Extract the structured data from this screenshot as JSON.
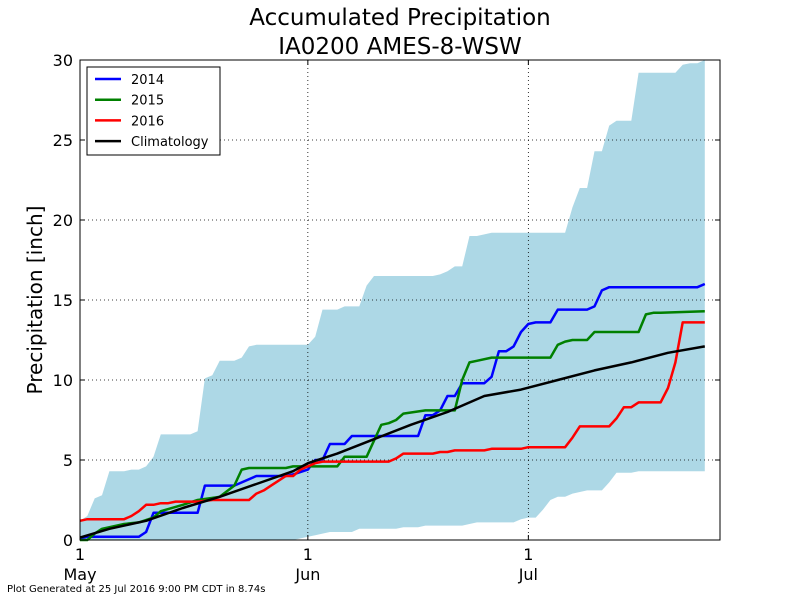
{
  "chart_data": {
    "type": "line",
    "title": "Accumulated Precipitation",
    "subtitle": "IA0200 AMES-8-WSW",
    "xlabel": "",
    "ylabel": "Precipitation [inch]",
    "ylim": [
      0,
      30
    ],
    "yticks": [
      0,
      5,
      10,
      15,
      20,
      25,
      30
    ],
    "xlim": [
      "2016-05-01",
      "2016-07-25"
    ],
    "xticks": [
      {
        "date": "2016-05-01",
        "label1": "1",
        "label2": "May"
      },
      {
        "date": "2016-06-01",
        "label1": "1",
        "label2": "Jun"
      },
      {
        "date": "2016-07-01",
        "label1": "1",
        "label2": "Jul"
      }
    ],
    "grid": true,
    "legend_position": "top-left",
    "range_band": {
      "color": "#add8e6",
      "x": [
        "2016-05-01",
        "2016-05-02",
        "2016-05-03",
        "2016-05-04",
        "2016-05-05",
        "2016-05-06",
        "2016-05-07",
        "2016-05-08",
        "2016-05-09",
        "2016-05-10",
        "2016-05-11",
        "2016-05-12",
        "2016-05-13",
        "2016-05-14",
        "2016-05-15",
        "2016-05-16",
        "2016-05-17",
        "2016-05-18",
        "2016-05-19",
        "2016-05-20",
        "2016-05-21",
        "2016-05-22",
        "2016-05-23",
        "2016-05-24",
        "2016-05-25",
        "2016-05-26",
        "2016-05-27",
        "2016-05-28",
        "2016-05-29",
        "2016-05-30",
        "2016-05-31",
        "2016-06-01",
        "2016-06-02",
        "2016-06-03",
        "2016-06-04",
        "2016-06-05",
        "2016-06-06",
        "2016-06-07",
        "2016-06-08",
        "2016-06-09",
        "2016-06-10",
        "2016-06-11",
        "2016-06-12",
        "2016-06-13",
        "2016-06-14",
        "2016-06-15",
        "2016-06-16",
        "2016-06-17",
        "2016-06-18",
        "2016-06-19",
        "2016-06-20",
        "2016-06-21",
        "2016-06-22",
        "2016-06-23",
        "2016-06-24",
        "2016-06-25",
        "2016-06-26",
        "2016-06-27",
        "2016-06-28",
        "2016-06-29",
        "2016-06-30",
        "2016-07-01",
        "2016-07-02",
        "2016-07-03",
        "2016-07-04",
        "2016-07-05",
        "2016-07-06",
        "2016-07-07",
        "2016-07-08",
        "2016-07-09",
        "2016-07-10",
        "2016-07-11",
        "2016-07-12",
        "2016-07-13",
        "2016-07-14",
        "2016-07-15",
        "2016-07-16",
        "2016-07-17",
        "2016-07-18",
        "2016-07-19",
        "2016-07-20",
        "2016-07-21",
        "2016-07-22",
        "2016-07-23",
        "2016-07-24",
        "2016-07-25"
      ],
      "upper": [
        1.2,
        1.5,
        2.6,
        2.8,
        4.3,
        4.3,
        4.3,
        4.4,
        4.4,
        4.6,
        5.2,
        6.6,
        6.6,
        6.6,
        6.6,
        6.6,
        6.8,
        10.1,
        10.3,
        11.2,
        11.2,
        11.2,
        11.4,
        12.1,
        12.2,
        12.2,
        12.2,
        12.2,
        12.2,
        12.2,
        12.2,
        12.2,
        12.7,
        14.4,
        14.4,
        14.4,
        14.6,
        14.6,
        14.6,
        15.9,
        16.5,
        16.5,
        16.5,
        16.5,
        16.5,
        16.5,
        16.5,
        16.5,
        16.5,
        16.6,
        16.8,
        17.1,
        17.1,
        19.0,
        19.0,
        19.1,
        19.2,
        19.2,
        19.2,
        19.2,
        19.2,
        19.2,
        19.2,
        19.2,
        19.2,
        19.2,
        19.2,
        20.8,
        22.0,
        22.0,
        24.3,
        24.3,
        25.9,
        26.2,
        26.2,
        26.2,
        29.2,
        29.2,
        29.2,
        29.2,
        29.2,
        29.2,
        29.7,
        29.8,
        29.8,
        30.0
      ],
      "lower": [
        0,
        0,
        0,
        0,
        0,
        0,
        0,
        0,
        0,
        0,
        0,
        0,
        0,
        0,
        0,
        0,
        0,
        0,
        0,
        0,
        0,
        0,
        0,
        0,
        0,
        0,
        0,
        0,
        0,
        0,
        0.1,
        0.2,
        0.3,
        0.4,
        0.5,
        0.5,
        0.5,
        0.5,
        0.7,
        0.7,
        0.7,
        0.7,
        0.7,
        0.7,
        0.8,
        0.8,
        0.8,
        0.9,
        0.9,
        0.9,
        0.9,
        0.9,
        0.9,
        1.0,
        1.1,
        1.1,
        1.1,
        1.1,
        1.1,
        1.1,
        1.3,
        1.4,
        1.4,
        1.9,
        2.5,
        2.7,
        2.7,
        2.9,
        3.0,
        3.1,
        3.1,
        3.1,
        3.6,
        4.2,
        4.2,
        4.2,
        4.3,
        4.3,
        4.3,
        4.3,
        4.3,
        4.3,
        4.3,
        4.3,
        4.3,
        4.3
      ]
    },
    "series": [
      {
        "name": "2014",
        "color": "#0000ff",
        "x": [
          "2016-05-01",
          "2016-05-02",
          "2016-05-09",
          "2016-05-10",
          "2016-05-11",
          "2016-05-13",
          "2016-05-17",
          "2016-05-18",
          "2016-05-21",
          "2016-05-22",
          "2016-05-25",
          "2016-05-26",
          "2016-05-29",
          "2016-05-30",
          "2016-06-01",
          "2016-06-02",
          "2016-06-03",
          "2016-06-04",
          "2016-06-05",
          "2016-06-06",
          "2016-06-07",
          "2016-06-08",
          "2016-06-09",
          "2016-06-10",
          "2016-06-11",
          "2016-06-12",
          "2016-06-13",
          "2016-06-14",
          "2016-06-15",
          "2016-06-16",
          "2016-06-17",
          "2016-06-18",
          "2016-06-19",
          "2016-06-20",
          "2016-06-21",
          "2016-06-22",
          "2016-06-23",
          "2016-06-24",
          "2016-06-25",
          "2016-06-26",
          "2016-06-27",
          "2016-06-28",
          "2016-06-29",
          "2016-06-30",
          "2016-07-01",
          "2016-07-02",
          "2016-07-03",
          "2016-07-04",
          "2016-07-05",
          "2016-07-06",
          "2016-07-07",
          "2016-07-08",
          "2016-07-09",
          "2016-07-10",
          "2016-07-11",
          "2016-07-12",
          "2016-07-13",
          "2016-07-14",
          "2016-07-15",
          "2016-07-16",
          "2016-07-17",
          "2016-07-18",
          "2016-07-19",
          "2016-07-20",
          "2016-07-21",
          "2016-07-22",
          "2016-07-23",
          "2016-07-24",
          "2016-07-25"
        ],
        "values": [
          0.1,
          0.2,
          0.2,
          0.5,
          1.7,
          1.7,
          1.7,
          3.4,
          3.4,
          3.4,
          4.0,
          4.0,
          4.0,
          4.1,
          4.4,
          5.0,
          5.0,
          6.0,
          6.0,
          6.0,
          6.5,
          6.5,
          6.5,
          6.5,
          6.5,
          6.5,
          6.5,
          6.5,
          6.5,
          6.5,
          7.8,
          7.8,
          8.1,
          9.0,
          9.0,
          9.8,
          9.8,
          9.8,
          9.8,
          10.2,
          11.8,
          11.8,
          12.1,
          13.0,
          13.5,
          13.6,
          13.6,
          13.6,
          14.4,
          14.4,
          14.4,
          14.4,
          14.4,
          14.6,
          15.6,
          15.8,
          15.8,
          15.8,
          15.8,
          15.8,
          15.8,
          15.8,
          15.8,
          15.8,
          15.8,
          15.8,
          15.8,
          15.8,
          16.0
        ]
      },
      {
        "name": "2015",
        "color": "#008000",
        "x": [
          "2016-05-01",
          "2016-05-02",
          "2016-05-03",
          "2016-05-04",
          "2016-05-05",
          "2016-05-06",
          "2016-05-07",
          "2016-05-09",
          "2016-05-11",
          "2016-05-12",
          "2016-05-15",
          "2016-05-17",
          "2016-05-20",
          "2016-05-22",
          "2016-05-23",
          "2016-05-24",
          "2016-05-25",
          "2016-05-29",
          "2016-05-30",
          "2016-06-01",
          "2016-06-03",
          "2016-06-05",
          "2016-06-06",
          "2016-06-08",
          "2016-06-09",
          "2016-06-11",
          "2016-06-12",
          "2016-06-13",
          "2016-06-14",
          "2016-06-17",
          "2016-06-18",
          "2016-06-19",
          "2016-06-20",
          "2016-06-21",
          "2016-06-22",
          "2016-06-23",
          "2016-06-24",
          "2016-06-26",
          "2016-06-30",
          "2016-07-02",
          "2016-07-03",
          "2016-07-04",
          "2016-07-05",
          "2016-07-06",
          "2016-07-07",
          "2016-07-08",
          "2016-07-09",
          "2016-07-10",
          "2016-07-14",
          "2016-07-15",
          "2016-07-16",
          "2016-07-17",
          "2016-07-18",
          "2016-07-19",
          "2016-07-25"
        ],
        "values": [
          0.0,
          0.0,
          0.4,
          0.7,
          0.8,
          0.9,
          1.0,
          1.1,
          1.4,
          1.8,
          2.2,
          2.5,
          2.7,
          3.4,
          4.4,
          4.5,
          4.5,
          4.5,
          4.6,
          4.6,
          4.6,
          4.6,
          5.2,
          5.2,
          5.2,
          7.2,
          7.3,
          7.5,
          7.9,
          8.1,
          8.1,
          8.1,
          8.1,
          8.1,
          10.0,
          11.1,
          11.2,
          11.4,
          11.4,
          11.4,
          11.4,
          11.4,
          12.2,
          12.4,
          12.5,
          12.5,
          12.5,
          13.0,
          13.0,
          13.0,
          13.0,
          14.1,
          14.2,
          14.2,
          14.3
        ]
      },
      {
        "name": "2016",
        "color": "#ff0000",
        "x": [
          "2016-05-01",
          "2016-05-02",
          "2016-05-07",
          "2016-05-08",
          "2016-05-09",
          "2016-05-10",
          "2016-05-11",
          "2016-05-12",
          "2016-05-13",
          "2016-05-14",
          "2016-05-15",
          "2016-05-16",
          "2016-05-17",
          "2016-05-19",
          "2016-05-20",
          "2016-05-21",
          "2016-05-22",
          "2016-05-23",
          "2016-05-24",
          "2016-05-25",
          "2016-05-26",
          "2016-05-27",
          "2016-05-28",
          "2016-05-29",
          "2016-05-30",
          "2016-05-31",
          "2016-06-01",
          "2016-06-02",
          "2016-06-03",
          "2016-06-04",
          "2016-06-05",
          "2016-06-06",
          "2016-06-07",
          "2016-06-08",
          "2016-06-09",
          "2016-06-10",
          "2016-06-11",
          "2016-06-12",
          "2016-06-13",
          "2016-06-14",
          "2016-06-15",
          "2016-06-16",
          "2016-06-17",
          "2016-06-18",
          "2016-06-19",
          "2016-06-20",
          "2016-06-21",
          "2016-06-22",
          "2016-06-23",
          "2016-06-24",
          "2016-06-25",
          "2016-06-26",
          "2016-06-27",
          "2016-06-28",
          "2016-06-29",
          "2016-06-30",
          "2016-07-01",
          "2016-07-02",
          "2016-07-03",
          "2016-07-04",
          "2016-07-05",
          "2016-07-06",
          "2016-07-07",
          "2016-07-08",
          "2016-07-09",
          "2016-07-10",
          "2016-07-11",
          "2016-07-12",
          "2016-07-13",
          "2016-07-14",
          "2016-07-15",
          "2016-07-16",
          "2016-07-17",
          "2016-07-18",
          "2016-07-19",
          "2016-07-20",
          "2016-07-21",
          "2016-07-22",
          "2016-07-23",
          "2016-07-24",
          "2016-07-25"
        ],
        "values": [
          1.2,
          1.3,
          1.3,
          1.5,
          1.8,
          2.2,
          2.2,
          2.3,
          2.3,
          2.4,
          2.4,
          2.4,
          2.4,
          2.5,
          2.5,
          2.5,
          2.5,
          2.5,
          2.5,
          2.9,
          3.1,
          3.4,
          3.7,
          4.0,
          4.0,
          4.4,
          4.6,
          4.8,
          4.9,
          4.9,
          4.9,
          4.9,
          4.9,
          4.9,
          4.9,
          4.9,
          4.9,
          4.9,
          5.1,
          5.4,
          5.4,
          5.4,
          5.4,
          5.4,
          5.5,
          5.5,
          5.6,
          5.6,
          5.6,
          5.6,
          5.6,
          5.7,
          5.7,
          5.7,
          5.7,
          5.7,
          5.8,
          5.8,
          5.8,
          5.8,
          5.8,
          5.8,
          6.4,
          7.1,
          7.1,
          7.1,
          7.1,
          7.1,
          7.6,
          8.3,
          8.3,
          8.6,
          8.6,
          8.6,
          8.6,
          9.5,
          11.1,
          13.6,
          13.6,
          13.6,
          13.6
        ]
      },
      {
        "name": "Climatology",
        "color": "#000000",
        "x": [
          "2016-05-01",
          "2016-05-05",
          "2016-05-10",
          "2016-05-15",
          "2016-05-20",
          "2016-05-25",
          "2016-05-30",
          "2016-06-01",
          "2016-06-05",
          "2016-06-10",
          "2016-06-15",
          "2016-06-20",
          "2016-06-25",
          "2016-06-30",
          "2016-07-05",
          "2016-07-10",
          "2016-07-15",
          "2016-07-20",
          "2016-07-25"
        ],
        "values": [
          0.15,
          0.7,
          1.2,
          2.0,
          2.7,
          3.5,
          4.3,
          4.8,
          5.4,
          6.3,
          7.2,
          8.0,
          9.0,
          9.4,
          10.0,
          10.6,
          11.1,
          11.7,
          12.1
        ]
      }
    ]
  },
  "footer": "Plot Generated at 25 Jul 2016 9:00 PM CDT in 8.74s"
}
